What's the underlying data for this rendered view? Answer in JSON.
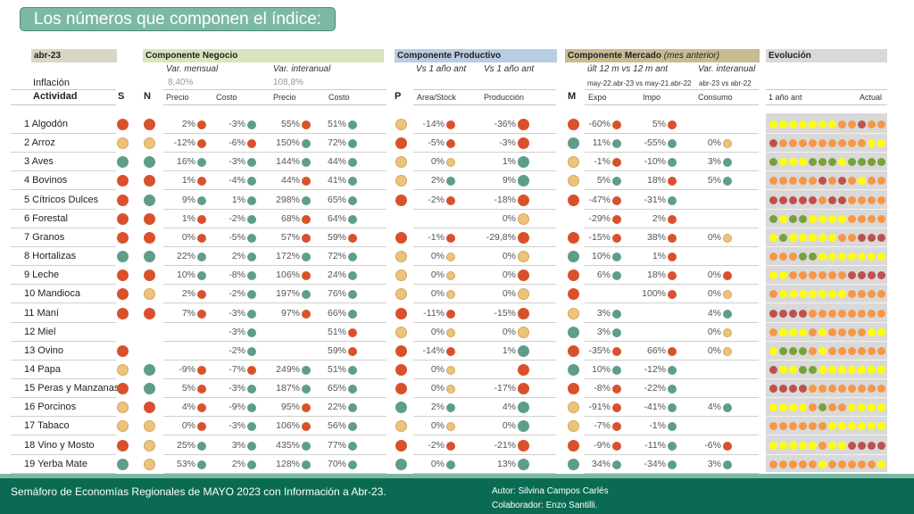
{
  "title": "Los números que componen el índice:",
  "headers": {
    "date": "abr-23",
    "inflation_label": "Inflación",
    "actividad": "Actividad",
    "s": "S",
    "n": "N",
    "p": "P",
    "m": "M",
    "negocio": {
      "title": "Componente Negocio",
      "var_mensual": "Var. mensual",
      "var_interanual": "Var. interanual",
      "inflacion_mensual": "8,40%",
      "inflacion_interanual": "108,8%",
      "cols": [
        "Precio",
        "Costo",
        "Precio",
        "Costo"
      ]
    },
    "productivo": {
      "title": "Componente Productivo",
      "sub1": "Vs 1 año ant",
      "sub2": "Vs 1 año ant",
      "cols": [
        "Area/Stock",
        "Producción"
      ]
    },
    "mercado": {
      "title": "Componente Mercado",
      "title_note": "(mes anterior)",
      "sub1": "últ 12 m vs 12 m ant",
      "sub2": "Var. interanual",
      "period1": "may-22.abr-23 vs may-21.abr-22",
      "period2": "abr-23 vs abr-22",
      "cols": [
        "Expo",
        "Impo",
        "Consumo"
      ]
    },
    "evolucion": {
      "title": "Evolución",
      "start": "1 año ant",
      "end": "Actual"
    }
  },
  "status_colors": {
    "r": "#d9512c",
    "y": "#ecc37a",
    "g": "#5e9e89"
  },
  "evolution_colors": {
    "Y": "#ffff00",
    "O": "#f79646",
    "R": "#c0504d",
    "G": "#77a13c"
  },
  "rows": [
    {
      "name": "1 Algodón",
      "s": "r",
      "n": "r",
      "neg": [
        [
          "2%",
          "r"
        ],
        [
          "-3%",
          "g"
        ],
        [
          "55%",
          "r"
        ],
        [
          "51%",
          "g"
        ]
      ],
      "p": "y",
      "prod": [
        [
          "-14%",
          "r"
        ],
        [
          "-36%",
          "r"
        ]
      ],
      "m": "r",
      "merc": [
        [
          "-60%",
          "r"
        ],
        [
          "5%",
          "r"
        ],
        null
      ],
      "evo": "YYYYYYYOOROO"
    },
    {
      "name": "2 Arroz",
      "s": "y",
      "n": "y",
      "neg": [
        [
          "-12%",
          "r"
        ],
        [
          "-6%",
          "r"
        ],
        [
          "150%",
          "g"
        ],
        [
          "72%",
          "g"
        ]
      ],
      "p": "r",
      "prod": [
        [
          "-5%",
          "r"
        ],
        [
          "-3%",
          "r"
        ]
      ],
      "m": "g",
      "merc": [
        [
          "11%",
          "g"
        ],
        [
          "-55%",
          "g"
        ],
        [
          "0%",
          "y"
        ]
      ],
      "evo": "ROOOOOOOOOYY"
    },
    {
      "name": "3 Aves",
      "s": "g",
      "n": "g",
      "neg": [
        [
          "16%",
          "g"
        ],
        [
          "-3%",
          "g"
        ],
        [
          "144%",
          "g"
        ],
        [
          "44%",
          "g"
        ]
      ],
      "p": "y",
      "prod": [
        [
          "0%",
          "y"
        ],
        [
          "1%",
          "g"
        ]
      ],
      "m": "y",
      "merc": [
        [
          "-1%",
          "r"
        ],
        [
          "-10%",
          "g"
        ],
        [
          "3%",
          "g"
        ]
      ],
      "evo": "GYYYGGGYGGGG"
    },
    {
      "name": "4 Bovinos",
      "s": "r",
      "n": "r",
      "neg": [
        [
          "1%",
          "r"
        ],
        [
          "-4%",
          "g"
        ],
        [
          "44%",
          "r"
        ],
        [
          "41%",
          "g"
        ]
      ],
      "p": "y",
      "prod": [
        [
          "2%",
          "g"
        ],
        [
          "9%",
          "g"
        ]
      ],
      "m": "y",
      "merc": [
        [
          "5%",
          "g"
        ],
        [
          "18%",
          "r"
        ],
        [
          "5%",
          "g"
        ]
      ],
      "evo": "OOOOOROROYOO"
    },
    {
      "name": "5 Cítricos Dulces",
      "s": "r",
      "n": "g",
      "neg": [
        [
          "9%",
          "g"
        ],
        [
          "1%",
          "g"
        ],
        [
          "298%",
          "g"
        ],
        [
          "65%",
          "g"
        ]
      ],
      "p": "r",
      "prod": [
        [
          "-2%",
          "r"
        ],
        [
          "-18%",
          "r"
        ]
      ],
      "m": "r",
      "merc": [
        [
          "-47%",
          "r"
        ],
        [
          "-31%",
          "g"
        ],
        null
      ],
      "evo": "RRRRRORROOOO"
    },
    {
      "name": "6 Forestal",
      "s": "r",
      "n": "r",
      "neg": [
        [
          "1%",
          "r"
        ],
        [
          "-2%",
          "g"
        ],
        [
          "68%",
          "r"
        ],
        [
          "64%",
          "g"
        ]
      ],
      "p": null,
      "prod": [
        null,
        [
          "0%",
          "y"
        ]
      ],
      "m": null,
      "merc": [
        [
          "-29%",
          "r"
        ],
        [
          "2%",
          "r"
        ],
        null
      ],
      "evo": "GYGGYYYYOOOO"
    },
    {
      "name": "7 Granos",
      "s": "r",
      "n": "r",
      "neg": [
        [
          "0%",
          "r"
        ],
        [
          "-5%",
          "g"
        ],
        [
          "57%",
          "r"
        ],
        [
          "59%",
          "r"
        ]
      ],
      "p": "r",
      "prod": [
        [
          "-1%",
          "r"
        ],
        [
          "-29,8%",
          "r"
        ]
      ],
      "m": "r",
      "merc": [
        [
          "-15%",
          "r"
        ],
        [
          "38%",
          "r"
        ],
        [
          "0%",
          "y"
        ]
      ],
      "evo": "YGYYYYYOORRR"
    },
    {
      "name": "8 Hortalizas",
      "s": "g",
      "n": "g",
      "neg": [
        [
          "22%",
          "g"
        ],
        [
          "2%",
          "g"
        ],
        [
          "172%",
          "g"
        ],
        [
          "72%",
          "g"
        ]
      ],
      "p": "y",
      "prod": [
        [
          "0%",
          "y"
        ],
        [
          "0%",
          "y"
        ]
      ],
      "m": "g",
      "merc": [
        [
          "10%",
          "g"
        ],
        [
          "1%",
          "r"
        ],
        null
      ],
      "evo": "OOOGGYYYYYYY"
    },
    {
      "name": "9 Leche",
      "s": "r",
      "n": "r",
      "neg": [
        [
          "10%",
          "g"
        ],
        [
          "-8%",
          "g"
        ],
        [
          "106%",
          "r"
        ],
        [
          "24%",
          "g"
        ]
      ],
      "p": "y",
      "prod": [
        [
          "0%",
          "y"
        ],
        [
          "0%",
          "r"
        ]
      ],
      "m": "r",
      "merc": [
        [
          "6%",
          "g"
        ],
        [
          "18%",
          "r"
        ],
        [
          "0%",
          "r"
        ]
      ],
      "evo": "YYOOOOOORRRR"
    },
    {
      "name": "10 Mandioca",
      "s": "r",
      "n": "y",
      "neg": [
        [
          "2%",
          "r"
        ],
        [
          "-2%",
          "g"
        ],
        [
          "197%",
          "g"
        ],
        [
          "76%",
          "g"
        ]
      ],
      "p": "y",
      "prod": [
        [
          "0%",
          "y"
        ],
        [
          "0%",
          "y"
        ]
      ],
      "m": "r",
      "merc": [
        null,
        [
          "100%",
          "r"
        ],
        [
          "0%",
          "y"
        ]
      ],
      "evo": "OYYYYYYYOOOO"
    },
    {
      "name": "11 Maní",
      "s": "r",
      "n": "r",
      "neg": [
        [
          "7%",
          "r"
        ],
        [
          "-3%",
          "g"
        ],
        [
          "97%",
          "r"
        ],
        [
          "66%",
          "g"
        ]
      ],
      "p": "r",
      "prod": [
        [
          "-11%",
          "r"
        ],
        [
          "-15%",
          "r"
        ]
      ],
      "m": "y",
      "merc": [
        [
          "3%",
          "g"
        ],
        null,
        [
          "4%",
          "g"
        ]
      ],
      "evo": "RRRROOOOOOOO"
    },
    {
      "name": "12 Miel",
      "s": null,
      "n": null,
      "neg": [
        null,
        [
          "-3%",
          "g"
        ],
        null,
        [
          "51%",
          "r"
        ]
      ],
      "p": "y",
      "prod": [
        [
          "0%",
          "y"
        ],
        [
          "0%",
          "y"
        ]
      ],
      "m": "g",
      "merc": [
        [
          "3%",
          "g"
        ],
        null,
        [
          "0%",
          "y"
        ]
      ],
      "evo": "OYYYOYOOOOYY"
    },
    {
      "name": "13 Ovino",
      "s": "r",
      "n": null,
      "neg": [
        null,
        [
          "-2%",
          "g"
        ],
        null,
        [
          "59%",
          "r"
        ]
      ],
      "p": "r",
      "prod": [
        [
          "-14%",
          "r"
        ],
        [
          "1%",
          "g"
        ]
      ],
      "m": "r",
      "merc": [
        [
          "-35%",
          "r"
        ],
        [
          "66%",
          "r"
        ],
        [
          "0%",
          "y"
        ]
      ],
      "evo": "YGGGOYOOOOOO"
    },
    {
      "name": "14 Papa",
      "s": "y",
      "n": "g",
      "neg": [
        [
          "-9%",
          "r"
        ],
        [
          "-7%",
          "r"
        ],
        [
          "249%",
          "g"
        ],
        [
          "51%",
          "g"
        ]
      ],
      "p": "r",
      "prod": [
        [
          "0%",
          "y"
        ],
        [
          "",
          "r"
        ]
      ],
      "m": "g",
      "merc": [
        [
          "10%",
          "g"
        ],
        [
          "-12%",
          "g"
        ],
        null
      ],
      "evo": "RYYGGYYYYYYY"
    },
    {
      "name": "15 Peras y Manzanas",
      "s": "r",
      "n": "g",
      "neg": [
        [
          "5%",
          "r"
        ],
        [
          "-3%",
          "g"
        ],
        [
          "187%",
          "g"
        ],
        [
          "65%",
          "g"
        ]
      ],
      "p": "r",
      "prod": [
        [
          "0%",
          "y"
        ],
        [
          "-17%",
          "r"
        ]
      ],
      "m": "r",
      "merc": [
        [
          "-8%",
          "r"
        ],
        [
          "-22%",
          "g"
        ],
        null
      ],
      "evo": "RRRROOOOOOOO"
    },
    {
      "name": "16 Porcinos",
      "s": "y",
      "n": "r",
      "neg": [
        [
          "4%",
          "r"
        ],
        [
          "-9%",
          "g"
        ],
        [
          "95%",
          "r"
        ],
        [
          "22%",
          "g"
        ]
      ],
      "p": "g",
      "prod": [
        [
          "2%",
          "g"
        ],
        [
          "4%",
          "g"
        ]
      ],
      "m": "y",
      "merc": [
        [
          "-91%",
          "r"
        ],
        [
          "-41%",
          "g"
        ],
        [
          "4%",
          "g"
        ]
      ],
      "evo": "YYYYOGOOYYYY"
    },
    {
      "name": "17 Tabaco",
      "s": "y",
      "n": "y",
      "neg": [
        [
          "0%",
          "r"
        ],
        [
          "-3%",
          "g"
        ],
        [
          "106%",
          "r"
        ],
        [
          "56%",
          "g"
        ]
      ],
      "p": "y",
      "prod": [
        [
          "0%",
          "y"
        ],
        [
          "0%",
          "g"
        ]
      ],
      "m": "y",
      "merc": [
        [
          "-7%",
          "r"
        ],
        [
          "-1%",
          "g"
        ],
        null
      ],
      "evo": "OOOOOOYYYYYY"
    },
    {
      "name": "18 Vino y Mosto",
      "s": "r",
      "n": "y",
      "neg": [
        [
          "25%",
          "g"
        ],
        [
          "3%",
          "g"
        ],
        [
          "435%",
          "g"
        ],
        [
          "77%",
          "g"
        ]
      ],
      "p": "r",
      "prod": [
        [
          "-2%",
          "r"
        ],
        [
          "-21%",
          "r"
        ]
      ],
      "m": "r",
      "merc": [
        [
          "-9%",
          "r"
        ],
        [
          "-11%",
          "g"
        ],
        [
          "-6%",
          "r"
        ]
      ],
      "evo": "YYYYYOYYRRRR"
    },
    {
      "name": "19 Yerba Mate",
      "s": "g",
      "n": "y",
      "neg": [
        [
          "53%",
          "g"
        ],
        [
          "2%",
          "g"
        ],
        [
          "128%",
          "g"
        ],
        [
          "70%",
          "g"
        ]
      ],
      "p": "g",
      "prod": [
        [
          "0%",
          "g"
        ],
        [
          "13%",
          "g"
        ]
      ],
      "m": "g",
      "merc": [
        [
          "34%",
          "g"
        ],
        [
          "-34%",
          "g"
        ],
        [
          "3%",
          "g"
        ]
      ],
      "evo": "OOOOOYOOOOOY"
    }
  ],
  "footer": {
    "title": "Semáforo de Economías Regionales de MAYO 2023 con Información a Abr-23.",
    "author": "Autor: Silvina Campos Carlés",
    "collaborator": "Colaborador: Enzo Santilli."
  }
}
